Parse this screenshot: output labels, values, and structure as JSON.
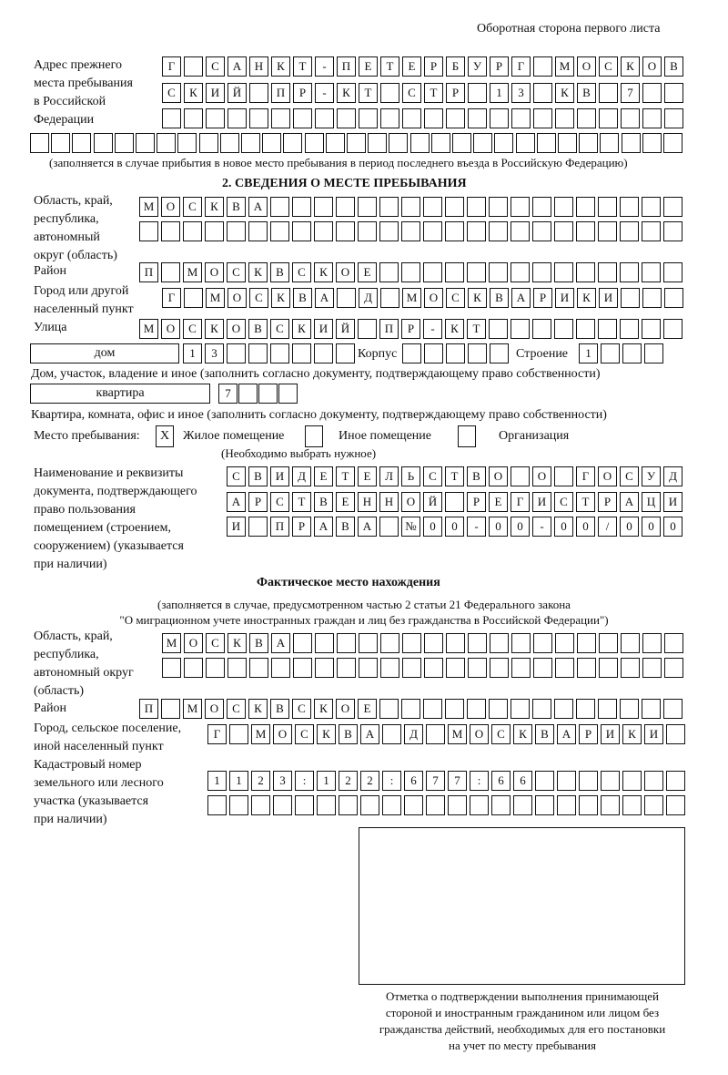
{
  "header": "Оборотная сторона первого листа",
  "prev_address": {
    "label": [
      "Адрес прежнего",
      "места пребывания",
      "в Российской",
      "Федерации"
    ],
    "rows": [
      "Г САНКТ-ПЕТЕРБУРГ МОСКОВ",
      "СКИЙ ПР-КТ СТР 13 КВ 7",
      "",
      ""
    ],
    "note": "(заполняется в случае прибытия в новое место пребывания в период последнего въезда в Российскую Федерацию)"
  },
  "section2": {
    "title": "2. СВЕДЕНИЯ О МЕСТЕ ПРЕБЫВАНИЯ",
    "region_label": [
      "Область, край,",
      "республика,",
      "автономный",
      "округ (область)"
    ],
    "region": [
      "МОСКВА",
      ""
    ],
    "district_label": "Район",
    "district": "П МОСКВСКОЕ",
    "city_label": [
      "Город или другой",
      "населенный пункт"
    ],
    "city": "Г МОСКВА Д МОСКВАРИКИ",
    "street_label": "Улица",
    "street": "МОСКОВСКИЙ ПР-КТ",
    "house_type": "дом",
    "house": "13",
    "korpus_label": "Корпус",
    "korpus": "",
    "building_label": "Строение",
    "building": "1",
    "house_note": "Дом, участок, владение и иное (заполнить согласно документу, подтверждающему право собственности)",
    "apt_type": "квартира",
    "apt": "7",
    "apt_note": "Квартира, комната, офис и иное (заполнить согласно документу, подтверждающему право собственности)",
    "place_label": "Место пребывания:",
    "opt_residential": "Жилое помещение",
    "opt_residential_mark": "X",
    "opt_other": "Иное помещение",
    "opt_org": "Организация",
    "choose_note": "(Необходимо выбрать нужное)",
    "doc_label": [
      "Наименование и реквизиты",
      "документа, подтверждающего",
      "право пользования",
      "помещением (строением,",
      "сооружением) (указывается",
      "при наличии)"
    ],
    "doc": [
      "СВИДЕТЕЛЬСТВО О ГОСУД",
      "АРСТВЕННОЙ РЕГИСТРАЦИ",
      "И ПРАВА №00-00-00/000"
    ]
  },
  "actual": {
    "title": "Фактическое место нахождения",
    "note": [
      "(заполняется в случае, предусмотренном частью 2 статьи 21 Федерального закона",
      "\"О миграционном учете иностранных граждан и лиц без гражданства в Российской Федерации\")"
    ],
    "region_label": [
      "Область, край,",
      "республика,",
      "автономный округ",
      "(область)"
    ],
    "region": [
      "МОСКВА",
      ""
    ],
    "district_label": "Район",
    "district": "П МОСКВСКОЕ",
    "city_label": [
      "Город, сельское поселение,",
      "иной населенный пункт"
    ],
    "city": "Г МОСКВА Д МОСКВАРИКИ",
    "cadastre_label": [
      "Кадастровый номер",
      "земельного или лесного",
      "участка (указывается",
      "при наличии)"
    ],
    "cadastre": [
      "1123:122:677:66",
      ""
    ]
  },
  "stamp_caption": [
    "Отметка о подтверждении выполнения принимающей",
    "стороной и иностранным гражданином или лицом без",
    "гражданства действий, необходимых для его постановки",
    "на учет по месту пребывания"
  ]
}
